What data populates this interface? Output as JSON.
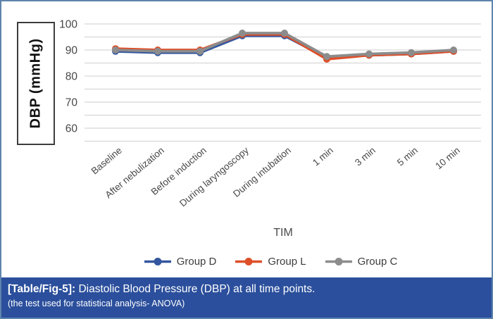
{
  "figure": {
    "caption_label": "[Table/Fig-5]:",
    "caption_text": " Diastolic Blood Pressure (DBP) at all time points.",
    "caption_subtext": "(the test used for statistical analysis- ANOVA)"
  },
  "chart_data": {
    "type": "line",
    "title": "",
    "xlabel": "TIM",
    "ylabel": "DBP (mmHg)",
    "categories": [
      "Baseline",
      "After nebulization",
      "Before induction",
      "During laryngoscopy",
      "During intubation",
      "1 min",
      "3 min",
      "5 min",
      "10 min"
    ],
    "series": [
      {
        "name": "Group D",
        "color": "#33569f",
        "values": [
          89.5,
          89,
          89,
          95.5,
          95.5,
          87,
          88,
          88.5,
          89.5
        ]
      },
      {
        "name": "Group L",
        "color": "#de4f29",
        "values": [
          90.5,
          90,
          90,
          96,
          96,
          86.5,
          88,
          88.5,
          89.5
        ]
      },
      {
        "name": "Group C",
        "color": "#8c8c8c",
        "values": [
          90,
          89.5,
          89.5,
          96.5,
          96.5,
          87.5,
          88.5,
          89,
          90
        ]
      }
    ],
    "y_axis": {
      "min": 55,
      "max": 100,
      "gridline_step": 5,
      "labeled_ticks": [
        100,
        90,
        80,
        70,
        60
      ]
    },
    "grid": true,
    "legend_position": "bottom"
  },
  "colors": {
    "border": "#5e84ad",
    "caption_background": "#2b4f9c",
    "caption_text": "#ffffff",
    "gridline": "#d6d6d6",
    "tick_text": "#474747"
  }
}
